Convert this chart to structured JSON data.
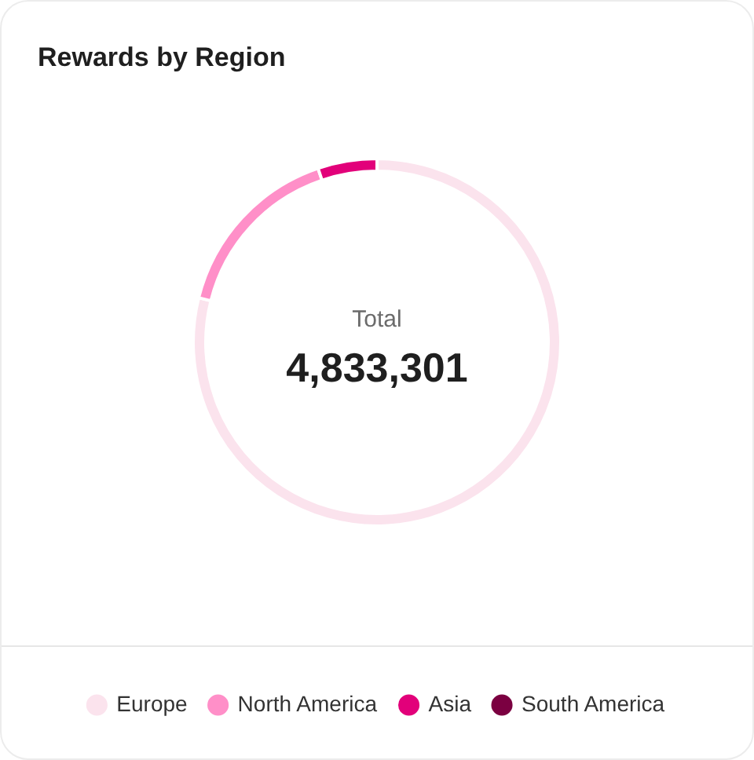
{
  "chart_data": {
    "type": "donut",
    "title": "Rewards by Region",
    "categories": [
      "Europe",
      "North America",
      "Asia",
      "South America"
    ],
    "values": [
      78.9,
      15.9,
      5.2,
      0
    ],
    "colors": [
      "#fbe3ed",
      "#ff8fc8",
      "#e2007a",
      "#7b0041"
    ],
    "legend": "bottom",
    "annotations": [
      "Total",
      "4,833,301"
    ]
  }
}
